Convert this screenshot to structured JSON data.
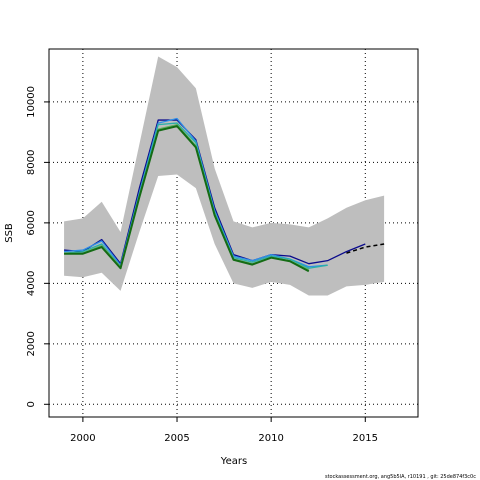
{
  "chart_data": {
    "type": "line",
    "xlabel": "Years",
    "ylabel": "SSB",
    "xlim": [
      1998.2,
      2017.8
    ],
    "ylim": [
      -420,
      11750
    ],
    "x_ticks": [
      2000,
      2005,
      2010,
      2015
    ],
    "y_ticks": [
      0,
      2000,
      4000,
      6000,
      8000,
      10000
    ],
    "grid": true,
    "grid_style": "dotted",
    "confidence_band": {
      "color": "#bebebe",
      "x": [
        1999,
        2000,
        2001,
        2002,
        2003,
        2004,
        2005,
        2006,
        2007,
        2008,
        2009,
        2010,
        2011,
        2012,
        2013,
        2014,
        2015,
        2016
      ],
      "upper": [
        6050,
        6150,
        6700,
        5700,
        8600,
        11500,
        11150,
        10450,
        7800,
        6050,
        5850,
        6000,
        5950,
        5850,
        6150,
        6500,
        6750,
        6900
      ],
      "lower": [
        4250,
        4200,
        4350,
        3750,
        5700,
        7550,
        7600,
        7150,
        5300,
        4000,
        3850,
        4050,
        3950,
        3600,
        3600,
        3900,
        3950,
        4050
      ]
    },
    "series": [
      {
        "color": "#0a0a8c",
        "width": 1.3,
        "dash": "",
        "x": [
          1999,
          2000,
          2001,
          2002,
          2003,
          2004,
          2005,
          2006,
          2007,
          2008,
          2009,
          2010,
          2011,
          2012,
          2013,
          2014,
          2015
        ],
        "values": [
          5100,
          5050,
          5450,
          4650,
          7150,
          9400,
          9400,
          8750,
          6500,
          4950,
          4750,
          4950,
          4900,
          4650,
          4750,
          5050,
          5300
        ]
      },
      {
        "color": "#2f8fe6",
        "width": 1.3,
        "dash": "",
        "x": [
          1999,
          2000,
          2001,
          2002,
          2003,
          2004,
          2005,
          2006,
          2007,
          2008,
          2009,
          2010,
          2011,
          2012,
          2013
        ],
        "values": [
          5050,
          5100,
          5400,
          4600,
          7000,
          9300,
          9450,
          8700,
          6400,
          4900,
          4750,
          4950,
          4800,
          4550,
          4600
        ]
      },
      {
        "color": "#2ab0a8",
        "width": 1.3,
        "dash": "",
        "x": [
          1999,
          2000,
          2001,
          2002,
          2003,
          2004,
          2005,
          2006,
          2007,
          2008,
          2009,
          2010,
          2011,
          2012,
          2013
        ],
        "values": [
          5000,
          5050,
          5300,
          4550,
          6950,
          9250,
          9300,
          8650,
          6350,
          4850,
          4700,
          4900,
          4800,
          4500,
          4600
        ]
      },
      {
        "color": "#60b060",
        "width": 1.3,
        "dash": "",
        "x": [
          1999,
          2000,
          2001,
          2002,
          2003,
          2004,
          2005,
          2006,
          2007,
          2008,
          2009,
          2010,
          2011,
          2012
        ],
        "values": [
          5000,
          5000,
          5250,
          4550,
          6900,
          9100,
          9250,
          8550,
          6300,
          4800,
          4650,
          4850,
          4750,
          4450
        ]
      },
      {
        "color": "#146b14",
        "width": 2,
        "dash": "",
        "x": [
          1999,
          2000,
          2001,
          2002,
          2003,
          2004,
          2005,
          2006,
          2007,
          2008,
          2009,
          2010,
          2011,
          2012
        ],
        "values": [
          4980,
          4980,
          5200,
          4500,
          6850,
          9050,
          9200,
          8500,
          6250,
          4780,
          4620,
          4850,
          4730,
          4400
        ]
      },
      {
        "color": "#000000",
        "width": 1.5,
        "dash": "4,3",
        "x": [
          2014,
          2015,
          2016
        ],
        "values": [
          5000,
          5200,
          5300
        ]
      }
    ]
  },
  "footer_text": "stockassessment.org, ang5b5lA, r10191 , git: 25de874f3c0c"
}
